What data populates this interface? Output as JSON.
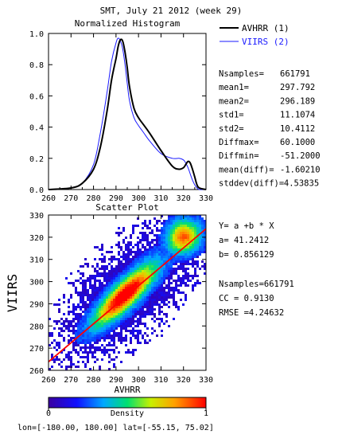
{
  "header": {
    "title": "SMT,  July 21 2012 (week 29)"
  },
  "colors": {
    "series1": "#000000",
    "series2": "#1a1aff",
    "fit_line": "#ff0000"
  },
  "histogram": {
    "subtitle": "Normalized Histogram",
    "legend": [
      {
        "label": "AVHRR (1)",
        "color": "#000000"
      },
      {
        "label": "VIIRS (2)",
        "color": "#1a1aff"
      }
    ],
    "stats": [
      {
        "label": "Nsamples=",
        "value": "661791"
      },
      {
        "label": "mean1=",
        "value": "297.792"
      },
      {
        "label": "mean2=",
        "value": "296.189"
      },
      {
        "label": "std1=",
        "value": "11.1074"
      },
      {
        "label": "std2=",
        "value": "10.4112"
      },
      {
        "label": "Diffmax=",
        "value": "60.1000"
      },
      {
        "label": "Diffmin=",
        "value": "-51.2000"
      },
      {
        "label": "mean(diff)=",
        "value": "-1.60210"
      },
      {
        "label": "stddev(diff)=",
        "value": "4.53835"
      }
    ]
  },
  "scatter": {
    "subtitle": "Scatter Plot",
    "stats": [
      "Y= a +b * X",
      "a= 41.2412",
      "b= 0.856129",
      "Nsamples=661791",
      "CC = 0.9130",
      "RMSE =4.24632"
    ]
  },
  "colorbar": {
    "label": "Density",
    "min_label": "0",
    "max_label": "1",
    "range": [
      0,
      1
    ]
  },
  "footer": {
    "region": "lon=[-180.00, 180.00] lat=[-55.15, 75.02]"
  },
  "chart_data": [
    {
      "type": "line",
      "title": "Normalized Histogram",
      "xlabel": "",
      "ylabel": "",
      "xlim": [
        260,
        330
      ],
      "ylim": [
        0,
        1
      ],
      "xticks": [
        260,
        270,
        280,
        290,
        300,
        310,
        320,
        330
      ],
      "yticks": [
        0.0,
        0.2,
        0.4,
        0.6,
        0.8,
        1.0
      ],
      "x": [
        260,
        270,
        275,
        280,
        283,
        286,
        288,
        290,
        291,
        292,
        293,
        294,
        295,
        296,
        298,
        300,
        302,
        305,
        310,
        315,
        318,
        320,
        321,
        322,
        323,
        324,
        325,
        326,
        327,
        330
      ],
      "series": [
        {
          "name": "AVHRR (1)",
          "color": "#000000",
          "values": [
            0.0,
            0.01,
            0.04,
            0.13,
            0.27,
            0.5,
            0.7,
            0.84,
            0.92,
            0.96,
            0.95,
            0.88,
            0.78,
            0.66,
            0.52,
            0.46,
            0.42,
            0.36,
            0.25,
            0.15,
            0.13,
            0.14,
            0.16,
            0.18,
            0.17,
            0.13,
            0.08,
            0.03,
            0.01,
            0.0
          ]
        },
        {
          "name": "VIIRS (2)",
          "color": "#1a1aff",
          "values": [
            0.0,
            0.01,
            0.04,
            0.16,
            0.36,
            0.62,
            0.82,
            0.94,
            0.97,
            0.95,
            0.9,
            0.8,
            0.68,
            0.57,
            0.46,
            0.41,
            0.37,
            0.31,
            0.23,
            0.2,
            0.2,
            0.19,
            0.17,
            0.14,
            0.1,
            0.06,
            0.03,
            0.01,
            0.0,
            0.0
          ]
        }
      ],
      "legend": "top-right",
      "grid": false
    },
    {
      "type": "heatmap",
      "title": "Scatter Plot",
      "xlabel": "AVHRR",
      "ylabel": "VIIRS",
      "xlim": [
        260,
        330
      ],
      "ylim": [
        260,
        330
      ],
      "xticks": [
        260,
        270,
        280,
        290,
        300,
        310,
        320,
        330
      ],
      "yticks": [
        260,
        270,
        280,
        290,
        300,
        310,
        320,
        330
      ],
      "density_range": [
        0,
        1
      ],
      "fit": {
        "a": 41.2412,
        "b": 0.856129
      },
      "grid": false
    }
  ]
}
